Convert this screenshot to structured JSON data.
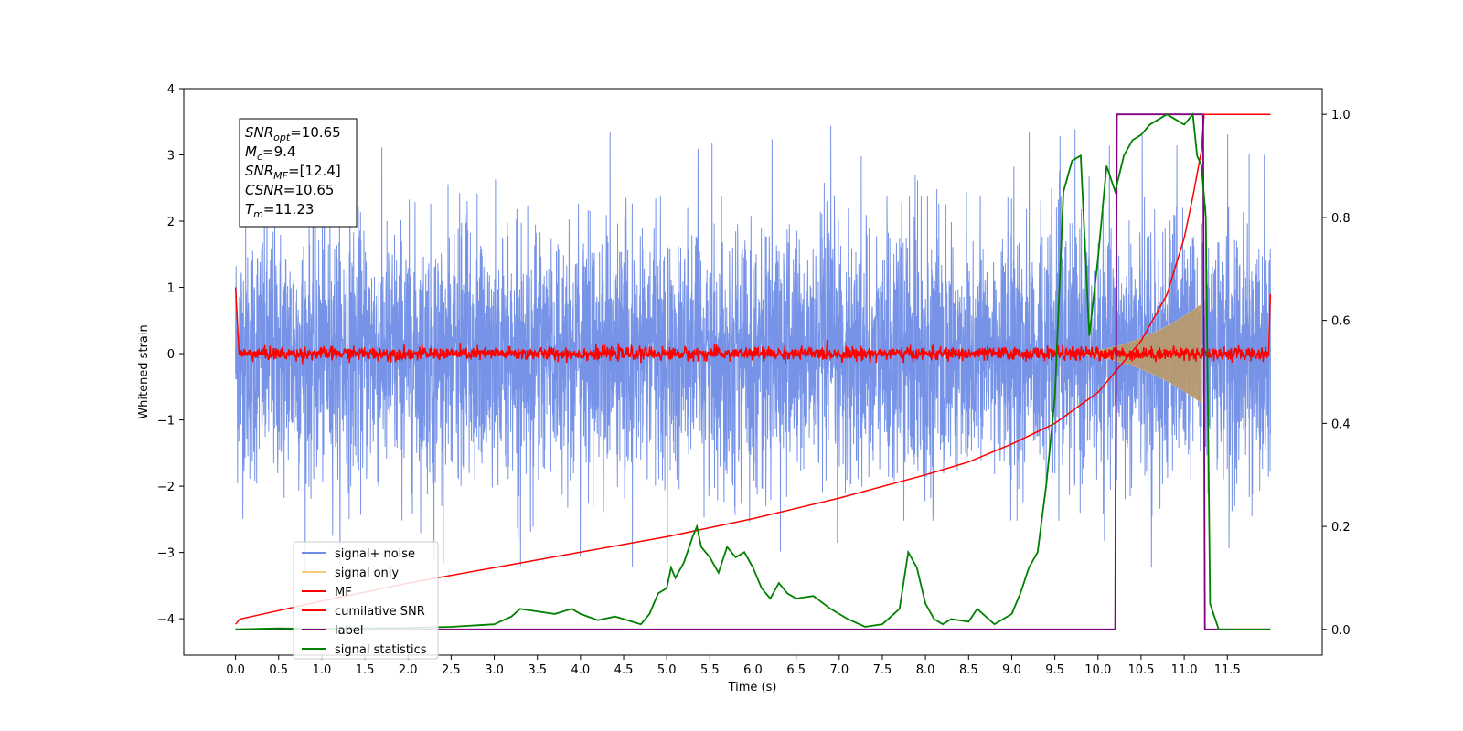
{
  "chart_data": {
    "type": "line",
    "xlabel": "Time (s)",
    "ylabel": "Whitened strain",
    "xlim": [
      -0.6,
      12.6
    ],
    "ylim": [
      -4.55,
      4.0
    ],
    "ylim_right": [
      -0.05,
      1.05
    ],
    "x_ticks": [
      "0.0",
      "0.5",
      "1.0",
      "1.5",
      "2.0",
      "2.5",
      "3.0",
      "3.5",
      "4.0",
      "4.5",
      "5.0",
      "5.5",
      "6.0",
      "6.5",
      "7.0",
      "7.5",
      "8.0",
      "8.5",
      "9.0",
      "9.5",
      "10.0",
      "10.5",
      "11.0",
      "11.5"
    ],
    "y_ticks": [
      "4",
      "3",
      "2",
      "1",
      "0",
      "−1",
      "−2",
      "−3",
      "−4"
    ],
    "y_ticks_right": [
      "1.0",
      "0.8",
      "0.6",
      "0.4",
      "0.2",
      "0.0"
    ],
    "grid": false,
    "legend_position": "lower-left",
    "legend": [
      {
        "label": "signal+ noise",
        "color": "#6f8de6"
      },
      {
        "label": "signal only",
        "color": "#f5c87a"
      },
      {
        "label": "MF",
        "color": "#ff0000"
      },
      {
        "label": "cumilative SNR",
        "color": "#ff0000"
      },
      {
        "label": "label",
        "color": "#800080"
      },
      {
        "label": "signal statistics",
        "color": "#008000"
      }
    ],
    "info_box": {
      "snr_opt": {
        "base": "SNR",
        "sub": "opt",
        "value": "=10.65"
      },
      "mc": {
        "base": "M",
        "sub": "c",
        "value": "=9.4"
      },
      "snr_mf": {
        "base": "SNR",
        "sub": "MF",
        "value": "=[12.4]"
      },
      "csnr": {
        "base": "CSNR",
        "sub": "",
        "value": "=10.65"
      },
      "tm": {
        "base": "T",
        "sub": "m",
        "value": "=11.23"
      }
    },
    "series": [
      {
        "name": "signal+ noise",
        "axis": "left",
        "description_range": [
          -4.6,
          3.4
        ],
        "t_start": 0.0,
        "t_end": 12.0,
        "std": 0.95
      },
      {
        "name": "signal only",
        "axis": "left",
        "chirp_start": 9.5,
        "chirp_end": 11.2,
        "peak_amplitude": 0.75
      },
      {
        "name": "MF",
        "axis": "left",
        "t_start": 0.0,
        "t_end": 12.0,
        "std": 0.05
      },
      {
        "name": "cumilative SNR",
        "axis": "right",
        "x": [
          0.0,
          0.05,
          1.0,
          2.0,
          3.0,
          4.0,
          5.0,
          6.0,
          7.0,
          8.0,
          8.5,
          9.0,
          9.5,
          10.0,
          10.5,
          10.8,
          11.0,
          11.1,
          11.2,
          11.23,
          11.3,
          12.0
        ],
        "y": [
          0.01,
          0.02,
          0.055,
          0.09,
          0.12,
          0.15,
          0.18,
          0.215,
          0.255,
          0.3,
          0.325,
          0.36,
          0.4,
          0.46,
          0.56,
          0.65,
          0.76,
          0.84,
          0.93,
          1.0,
          1.0,
          1.0
        ]
      },
      {
        "name": "label",
        "axis": "right",
        "x": [
          0.0,
          10.2,
          10.22,
          11.22,
          11.24,
          12.0
        ],
        "y": [
          0.0,
          0.0,
          1.0,
          1.0,
          0.0,
          0.0
        ]
      },
      {
        "name": "signal statistics",
        "axis": "right",
        "x": [
          0.0,
          0.5,
          1.0,
          1.5,
          2.0,
          2.5,
          2.8,
          3.0,
          3.2,
          3.3,
          3.5,
          3.7,
          3.9,
          4.0,
          4.2,
          4.4,
          4.6,
          4.7,
          4.8,
          4.9,
          5.0,
          5.05,
          5.1,
          5.2,
          5.3,
          5.35,
          5.4,
          5.5,
          5.6,
          5.7,
          5.8,
          5.9,
          6.0,
          6.1,
          6.2,
          6.3,
          6.4,
          6.5,
          6.7,
          6.9,
          7.1,
          7.3,
          7.5,
          7.7,
          7.8,
          7.9,
          8.0,
          8.1,
          8.2,
          8.3,
          8.5,
          8.6,
          8.8,
          9.0,
          9.1,
          9.2,
          9.3,
          9.4,
          9.5,
          9.6,
          9.7,
          9.8,
          9.9,
          10.0,
          10.1,
          10.2,
          10.3,
          10.4,
          10.5,
          10.6,
          10.7,
          10.8,
          10.9,
          11.0,
          11.1,
          11.15,
          11.2,
          11.25,
          11.3,
          11.4,
          12.0
        ],
        "y": [
          0.0,
          0.002,
          0.001,
          0.002,
          0.003,
          0.005,
          0.008,
          0.01,
          0.025,
          0.04,
          0.035,
          0.03,
          0.04,
          0.03,
          0.018,
          0.025,
          0.015,
          0.01,
          0.03,
          0.07,
          0.08,
          0.12,
          0.1,
          0.13,
          0.18,
          0.2,
          0.16,
          0.14,
          0.11,
          0.16,
          0.14,
          0.15,
          0.12,
          0.08,
          0.06,
          0.09,
          0.07,
          0.06,
          0.065,
          0.04,
          0.02,
          0.005,
          0.01,
          0.04,
          0.15,
          0.12,
          0.05,
          0.02,
          0.01,
          0.02,
          0.015,
          0.04,
          0.01,
          0.03,
          0.07,
          0.12,
          0.15,
          0.28,
          0.45,
          0.85,
          0.91,
          0.92,
          0.57,
          0.72,
          0.9,
          0.85,
          0.92,
          0.95,
          0.96,
          0.98,
          0.99,
          1.0,
          0.99,
          0.98,
          1.0,
          0.92,
          0.9,
          0.8,
          0.05,
          0.0,
          0.0
        ]
      }
    ]
  }
}
